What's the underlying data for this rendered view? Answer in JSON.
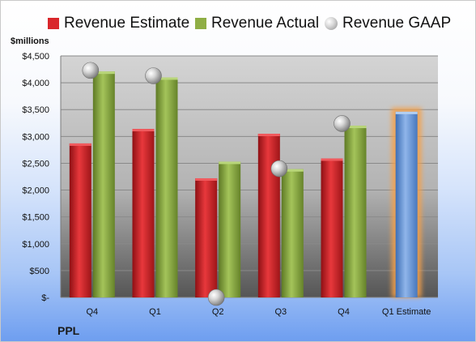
{
  "chart_data": {
    "type": "bar",
    "unit_label": "$millions",
    "company": "PPL",
    "categories": [
      "Q4",
      "Q1",
      "Q2",
      "Q3",
      "Q4",
      "Q1 Estimate"
    ],
    "y_ticks": [
      "$-",
      "$500",
      "$1,000",
      "$1,500",
      "$2,000",
      "$2,500",
      "$3,000",
      "$3,500",
      "$4,000",
      "$4,500"
    ],
    "ylim": [
      0,
      4500
    ],
    "series": [
      {
        "name": "Revenue Estimate",
        "color": "#d9262b",
        "values": [
          2870,
          3140,
          2220,
          3050,
          2590,
          null
        ]
      },
      {
        "name": "Revenue Actual",
        "color": "#8fae45",
        "values": [
          4210,
          4100,
          2530,
          2390,
          3200,
          null
        ]
      },
      {
        "name": "Revenue GAAP",
        "color": "#a9a9a9",
        "values": [
          4230,
          4130,
          0,
          2400,
          3240,
          null
        ]
      }
    ],
    "estimate": {
      "category_index": 5,
      "value": 3460,
      "color": "#6d9bd8",
      "glow": "#f5a04a"
    }
  }
}
